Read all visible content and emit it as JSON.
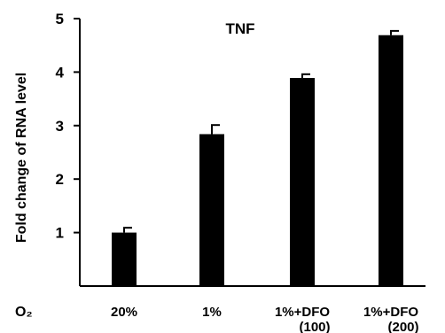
{
  "chart_data": {
    "type": "bar",
    "title": "TNF",
    "ylabel": "Fold change of RNA level",
    "xlabel": "O₂",
    "categories": [
      [
        "20%"
      ],
      [
        "1%"
      ],
      [
        "1%+DFO",
        "(100)"
      ],
      [
        "1%+DFO",
        "(200)"
      ]
    ],
    "values": [
      1.0,
      2.84,
      3.89,
      4.69
    ],
    "errors": [
      0.09,
      0.17,
      0.07,
      0.08
    ],
    "ylim": [
      0,
      5
    ],
    "yticks": [
      "1",
      "2",
      "3",
      "4",
      "5"
    ],
    "grid": false,
    "legend": "none",
    "colors": {
      "bar": "#000000",
      "axis": "#000000",
      "background": "#ffffff"
    }
  }
}
